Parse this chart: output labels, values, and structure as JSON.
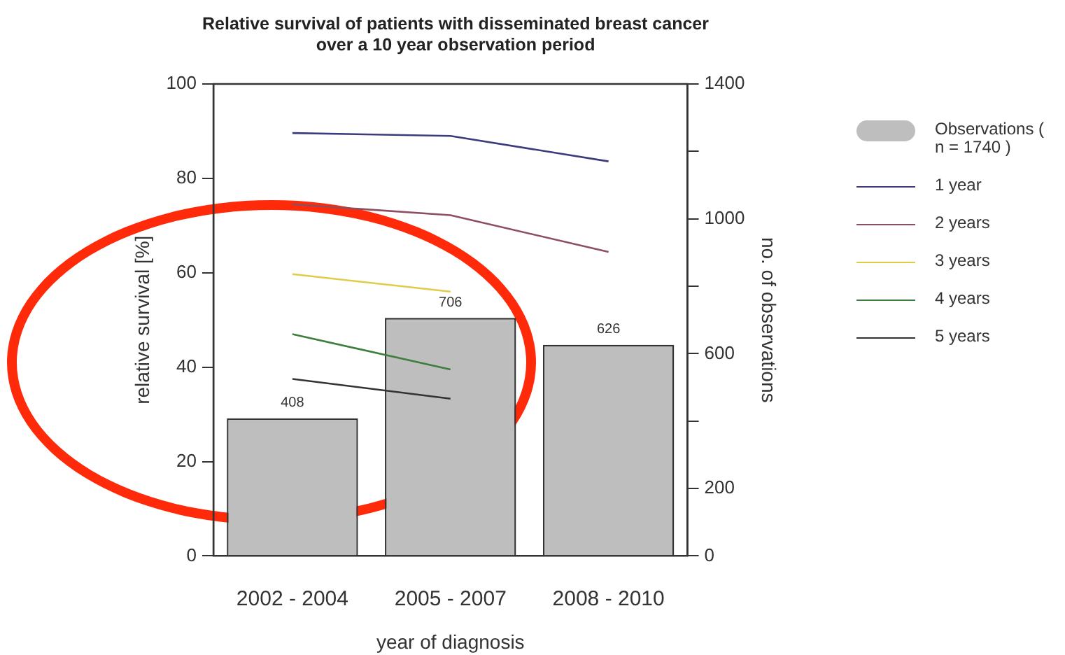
{
  "chart_data": {
    "type": "bar",
    "title": "Relative survival of patients with disseminated breast cancer\nover a 10 year observation period",
    "xlabel": "year of diagnosis",
    "ylabel": "relative survival [%]",
    "y2label": "no. of observations",
    "categories": [
      "2002 - 2004",
      "2005 - 2007",
      "2008 - 2010"
    ],
    "series": [
      {
        "name": "Observations ( n = 1740 )",
        "axis": "y2",
        "color": "#bebebe",
        "values": [
          408,
          706,
          626
        ],
        "value_labels": [
          "408",
          "706",
          "626"
        ]
      },
      {
        "name": "1 year",
        "type": "line",
        "color": "#3b3b7e",
        "values": [
          89.6,
          89.0,
          83.6
        ]
      },
      {
        "name": "2 years",
        "type": "line",
        "color": "#8c4f5f",
        "values": [
          74.5,
          72.2,
          64.4
        ]
      },
      {
        "name": "3 years",
        "type": "line",
        "color": "#e3cb4a",
        "values": [
          59.7,
          56.0,
          null
        ]
      },
      {
        "name": "4 years",
        "type": "line",
        "color": "#3d7d3d",
        "values": [
          47.0,
          39.5,
          null
        ]
      },
      {
        "name": "5 years",
        "type": "line",
        "color": "#333333",
        "values": [
          37.5,
          33.3,
          null
        ]
      }
    ],
    "ylim": [
      0,
      100
    ],
    "yticks": [
      0,
      20,
      40,
      60,
      80,
      100
    ],
    "y2lim": [
      0,
      1400
    ],
    "y2ticks": [
      0,
      200,
      {
        "value": 400,
        "label": null
      },
      600,
      {
        "value": 800,
        "label": null
      },
      1000,
      {
        "value": 1200,
        "label": null
      },
      1400
    ],
    "grid": false,
    "legend": "right",
    "marker": "none"
  }
}
